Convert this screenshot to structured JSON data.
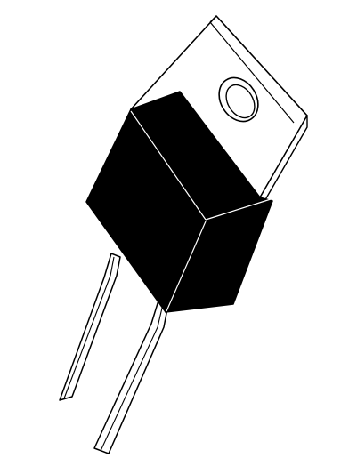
{
  "figure": {
    "subject": "to-220-2-package-icon",
    "colors": {
      "background": "#ffffff",
      "outline": "#000000",
      "body": "#000000",
      "tab": "#ffffff",
      "edge_highlight": "#ffffff"
    },
    "icons": {
      "component": "to-220-package-icon",
      "tab": "mounting-tab",
      "hole": "mounting-hole",
      "leads": "lead"
    }
  }
}
